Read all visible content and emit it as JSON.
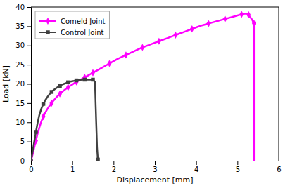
{
  "chart_data": {
    "type": "line",
    "xlabel": "Displacement [mm]",
    "ylabel": "Load [kN]",
    "xlim": [
      0,
      6
    ],
    "ylim": [
      0,
      40
    ],
    "xticks": [
      0,
      1,
      2,
      3,
      4,
      5,
      6
    ],
    "yticks": [
      0,
      5,
      10,
      15,
      20,
      25,
      30,
      35,
      40
    ],
    "grid": false,
    "legend": "upper left",
    "series": [
      {
        "name": "Comeld Joint",
        "color": "#FF00FF",
        "marker": "diamond",
        "x": [
          0,
          0.02,
          0.05,
          0.08,
          0.12,
          0.16,
          0.2,
          0.25,
          0.3,
          0.35,
          0.4,
          0.45,
          0.5,
          0.55,
          0.6,
          0.65,
          0.7,
          0.75,
          0.8,
          0.85,
          0.9,
          0.95,
          1.0,
          1.05,
          1.1,
          1.15,
          1.2,
          1.25,
          1.3,
          1.35,
          1.4,
          1.45,
          1.5,
          1.6,
          1.7,
          1.8,
          1.9,
          2.0,
          2.1,
          2.2,
          2.3,
          2.4,
          2.5,
          2.6,
          2.7,
          2.8,
          2.9,
          3.0,
          3.1,
          3.2,
          3.3,
          3.4,
          3.5,
          3.6,
          3.7,
          3.8,
          3.9,
          4.0,
          4.1,
          4.2,
          4.3,
          4.4,
          4.5,
          4.6,
          4.7,
          4.8,
          4.9,
          5.0,
          5.1,
          5.15,
          5.2,
          5.25,
          5.27,
          5.3,
          5.35,
          5.38,
          5.4,
          5.4
        ],
        "values": [
          0,
          0.8,
          2.0,
          3.5,
          5.2,
          7.0,
          8.5,
          10.2,
          11.5,
          12.6,
          13.5,
          14.3,
          15.0,
          15.7,
          16.3,
          16.9,
          17.4,
          17.9,
          18.3,
          18.7,
          19.1,
          19.5,
          19.8,
          20.2,
          20.5,
          20.8,
          21.1,
          21.4,
          21.7,
          22.0,
          22.3,
          22.6,
          22.9,
          23.5,
          24.1,
          24.7,
          25.3,
          25.9,
          26.5,
          27.0,
          27.5,
          28.0,
          28.5,
          29.0,
          29.5,
          29.9,
          30.3,
          30.7,
          31.1,
          31.5,
          31.9,
          32.3,
          32.7,
          33.1,
          33.5,
          33.9,
          34.3,
          34.7,
          35.1,
          35.4,
          35.7,
          36.0,
          36.3,
          36.6,
          36.9,
          37.2,
          37.5,
          37.8,
          38.1,
          38.2,
          38.3,
          38.2,
          38.0,
          37.5,
          36.8,
          36.2,
          35.8,
          0.0
        ]
      },
      {
        "name": "Control Joint",
        "color": "#404040",
        "marker": "square",
        "x": [
          0,
          0.02,
          0.05,
          0.08,
          0.12,
          0.16,
          0.2,
          0.25,
          0.3,
          0.35,
          0.4,
          0.45,
          0.5,
          0.55,
          0.6,
          0.65,
          0.7,
          0.75,
          0.8,
          0.85,
          0.9,
          0.95,
          1.0,
          1.05,
          1.1,
          1.15,
          1.2,
          1.25,
          1.3,
          1.35,
          1.4,
          1.45,
          1.5,
          1.55,
          1.58,
          1.6,
          1.62,
          1.62
        ],
        "values": [
          0,
          1.2,
          3.0,
          5.0,
          7.5,
          9.8,
          11.8,
          13.5,
          14.8,
          15.8,
          16.6,
          17.3,
          17.9,
          18.4,
          18.8,
          19.2,
          19.5,
          19.8,
          20.0,
          20.2,
          20.4,
          20.6,
          20.7,
          20.8,
          20.9,
          21.0,
          21.05,
          21.08,
          21.1,
          21.1,
          21.1,
          21.1,
          21.1,
          20.5,
          10.0,
          3.5,
          0.3,
          0.0
        ]
      }
    ]
  }
}
